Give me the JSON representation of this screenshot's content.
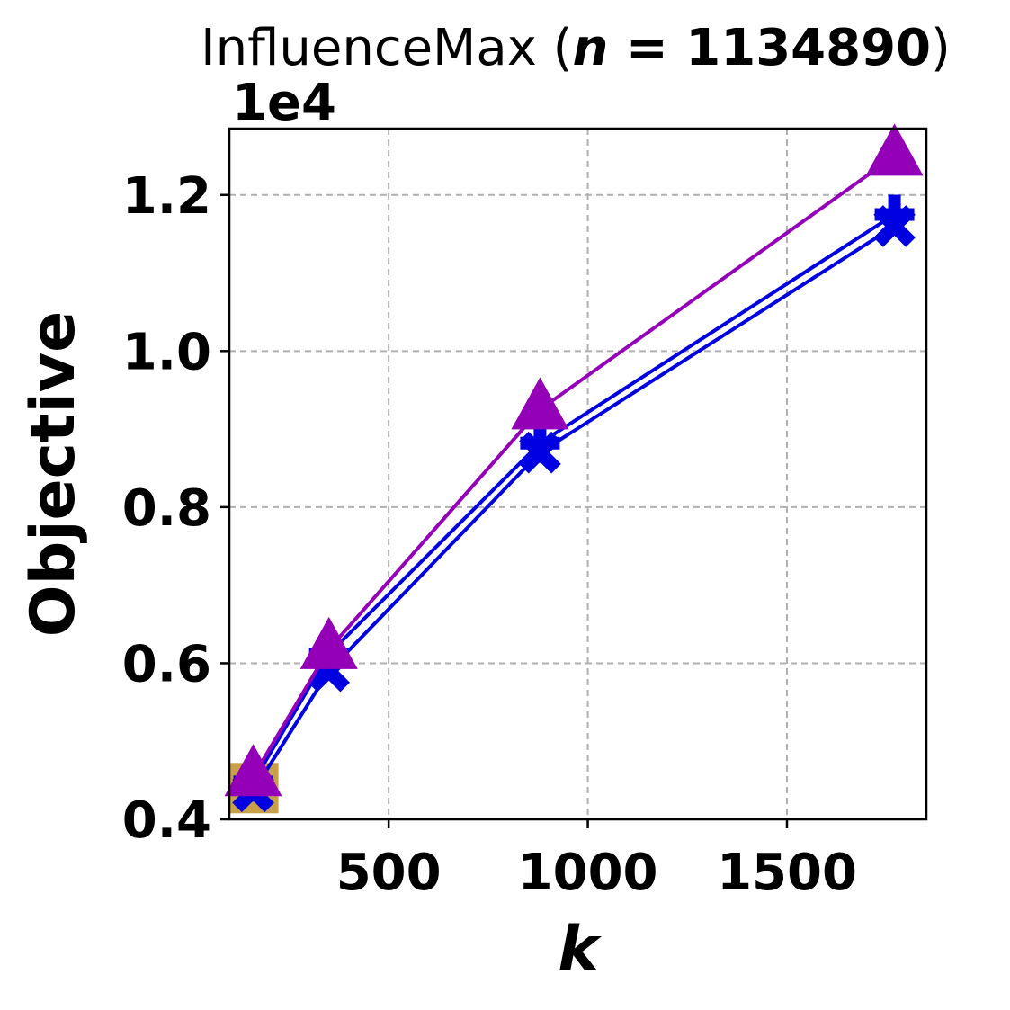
{
  "chart_data": {
    "type": "line",
    "title": {
      "prefix": "InfluenceMax (",
      "var": "n",
      "eq": " = ",
      "value": "1134890",
      "suffix": ")"
    },
    "xlabel": "k",
    "ylabel": "Objective",
    "y_offset_label": "1e4",
    "xlim": [
      100,
      1850
    ],
    "ylim": [
      0.4,
      1.285
    ],
    "x_ticks": [
      500,
      1000,
      1500
    ],
    "x_tick_labels": [
      "500",
      "1000",
      "1500"
    ],
    "y_ticks": [
      0.4,
      0.6,
      0.8,
      1.0,
      1.2
    ],
    "y_tick_labels": [
      "0.4",
      "0.6",
      "0.8",
      "1.0",
      "1.2"
    ],
    "grid": true,
    "colors": {
      "blue": "#0000e0",
      "purple": "#9400b8",
      "tan": "#c8a048"
    },
    "series": [
      {
        "color": "#0000e0",
        "marker": "x",
        "x": [
          160,
          350,
          880,
          1770
        ],
        "y": [
          0.436,
          0.59,
          0.87,
          1.16
        ]
      },
      {
        "color": "#0000e0",
        "marker": "plus",
        "x": [
          160,
          350,
          880,
          1770
        ],
        "y": [
          0.448,
          0.612,
          0.882,
          1.175
        ]
      },
      {
        "color": "#9400b8",
        "marker": "triangle",
        "x": [
          160,
          350,
          880,
          1770
        ],
        "y": [
          0.455,
          0.618,
          0.925,
          1.25
        ]
      },
      {
        "color": "#c8a048",
        "marker": "square",
        "x": [
          160
        ],
        "y": [
          0.44
        ]
      }
    ]
  }
}
